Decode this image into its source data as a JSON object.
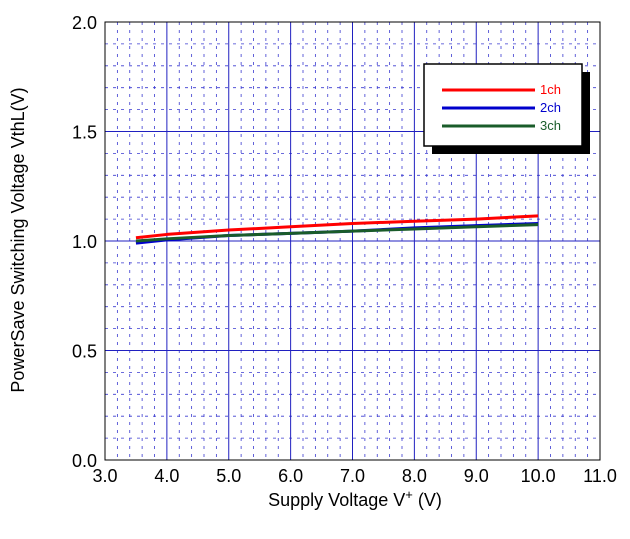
{
  "chart_data": {
    "type": "line",
    "xlabel": "Supply Voltage  V",
    "xlabel_sup": "+",
    "xlabel_unit": "  (V)",
    "ylabel": "PowerSave Switching Voltage  VthL(V)",
    "xlim": [
      3.0,
      11.0
    ],
    "ylim": [
      0.0,
      2.0
    ],
    "x_ticks": [
      3.0,
      4.0,
      5.0,
      6.0,
      7.0,
      8.0,
      9.0,
      10.0,
      11.0
    ],
    "x_tick_labels": [
      "3.0",
      "4.0",
      "5.0",
      "6.0",
      "7.0",
      "8.0",
      "9.0",
      "10.0",
      "11.0"
    ],
    "y_ticks": [
      0.0,
      0.5,
      1.0,
      1.5,
      2.0
    ],
    "y_tick_labels": [
      "0.0",
      "0.5",
      "1.0",
      "1.5",
      "2.0"
    ],
    "grid": true,
    "legend_position": "top-right",
    "series": [
      {
        "name": "1ch",
        "color": "#ff0000",
        "x": [
          3.5,
          4.0,
          5.0,
          6.0,
          7.0,
          8.0,
          9.0,
          10.0
        ],
        "y": [
          1.015,
          1.03,
          1.05,
          1.065,
          1.08,
          1.09,
          1.1,
          1.115
        ]
      },
      {
        "name": "2ch",
        "color": "#0000cc",
        "x": [
          3.5,
          4.0,
          5.0,
          6.0,
          7.0,
          8.0,
          9.0,
          10.0
        ],
        "y": [
          0.99,
          1.005,
          1.025,
          1.035,
          1.045,
          1.06,
          1.07,
          1.08
        ]
      },
      {
        "name": "3ch",
        "color": "#1a5c2a",
        "x": [
          3.5,
          4.0,
          5.0,
          6.0,
          7.0,
          8.0,
          9.0,
          10.0
        ],
        "y": [
          1.0,
          1.01,
          1.025,
          1.035,
          1.045,
          1.055,
          1.065,
          1.075
        ]
      }
    ]
  }
}
